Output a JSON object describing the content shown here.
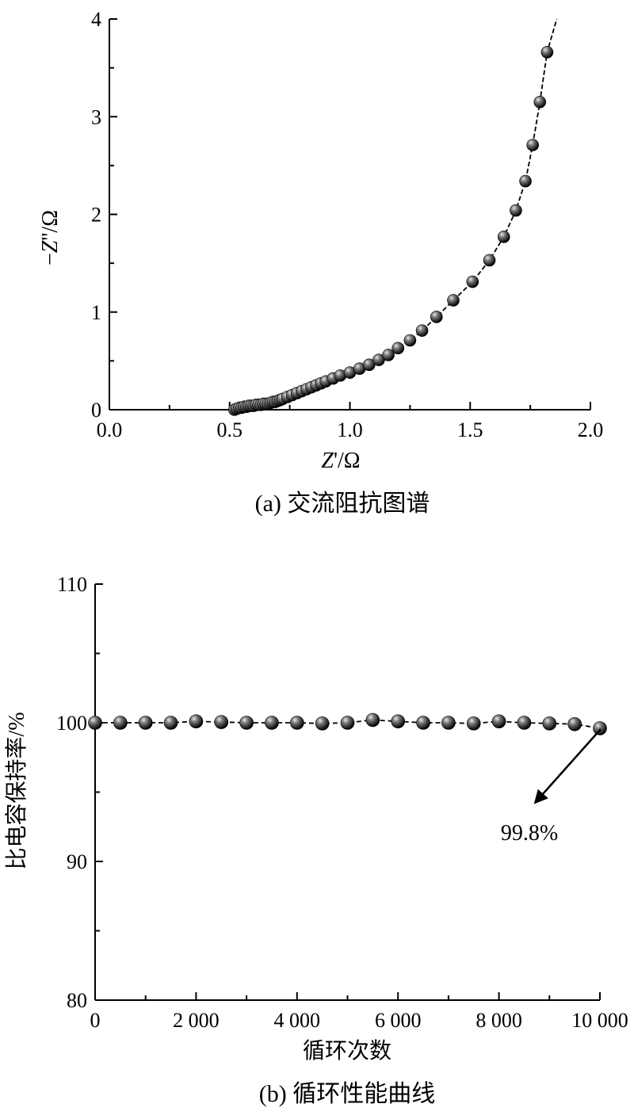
{
  "colors": {
    "marker_dark": "#000000",
    "marker_light": "#bdbdbd",
    "line": "#000000",
    "axis": "#000000"
  },
  "chart_data": [
    {
      "type": "line",
      "caption": "(a) 交流阻抗图谱",
      "xlabel_italic": "Z",
      "xlabel_rest": "'/Ω",
      "ylabel_prefix": "−",
      "ylabel_italic": "Z",
      "ylabel_rest": "''/Ω",
      "xlim": [
        0.0,
        2.0
      ],
      "ylim": [
        0,
        4
      ],
      "x_ticks": [
        "0.0",
        "0.5",
        "1.0",
        "1.5",
        "2.0"
      ],
      "y_ticks": [
        "0",
        "1",
        "2",
        "3",
        "4"
      ],
      "grid": false,
      "series": [
        {
          "x": [
            0.52,
            0.53,
            0.54,
            0.55,
            0.56,
            0.57,
            0.58,
            0.59,
            0.6,
            0.61,
            0.62,
            0.63,
            0.64,
            0.65,
            0.66,
            0.67,
            0.68,
            0.69,
            0.7,
            0.71,
            0.72,
            0.74,
            0.76,
            0.78,
            0.8,
            0.82,
            0.84,
            0.86,
            0.88,
            0.9,
            0.93,
            0.96,
            1.0,
            1.04,
            1.08,
            1.12,
            1.16,
            1.2,
            1.25,
            1.3,
            1.36,
            1.43,
            1.51,
            1.58,
            1.64,
            1.69,
            1.73,
            1.76,
            1.79,
            1.82,
            1.86
          ],
          "y": [
            0.0,
            0.01,
            0.02,
            0.02,
            0.03,
            0.03,
            0.04,
            0.04,
            0.04,
            0.05,
            0.05,
            0.05,
            0.06,
            0.06,
            0.06,
            0.07,
            0.08,
            0.08,
            0.09,
            0.1,
            0.11,
            0.13,
            0.15,
            0.17,
            0.19,
            0.21,
            0.23,
            0.25,
            0.27,
            0.29,
            0.32,
            0.35,
            0.38,
            0.42,
            0.46,
            0.51,
            0.56,
            0.63,
            0.71,
            0.81,
            0.95,
            1.12,
            1.31,
            1.53,
            1.77,
            2.04,
            2.34,
            2.71,
            3.15,
            3.66,
            4.0
          ],
          "markers": true,
          "marker_count": 50
        }
      ]
    },
    {
      "type": "line",
      "caption": "(b) 循环性能曲线",
      "xlabel": "循环次数",
      "ylabel": "比电容保持率/%",
      "xlim": [
        0,
        10000
      ],
      "ylim": [
        80,
        110
      ],
      "x_ticks": [
        "0",
        "2 000",
        "4 000",
        "6 000",
        "8 000",
        "10 000"
      ],
      "y_ticks": [
        "80",
        "90",
        "100",
        "110"
      ],
      "grid": false,
      "annotation": "99.8%",
      "series": [
        {
          "x": [
            0,
            500,
            1000,
            1500,
            2000,
            2500,
            3000,
            3500,
            4000,
            4500,
            5000,
            5500,
            6000,
            6500,
            7000,
            7500,
            8000,
            8500,
            9000,
            9500,
            10000
          ],
          "y": [
            100.0,
            100.0,
            100.0,
            100.0,
            100.1,
            100.05,
            100.0,
            100.0,
            100.0,
            99.95,
            100.0,
            100.2,
            100.1,
            100.0,
            100.0,
            99.95,
            100.1,
            100.0,
            99.95,
            99.9,
            99.6
          ]
        }
      ]
    }
  ]
}
